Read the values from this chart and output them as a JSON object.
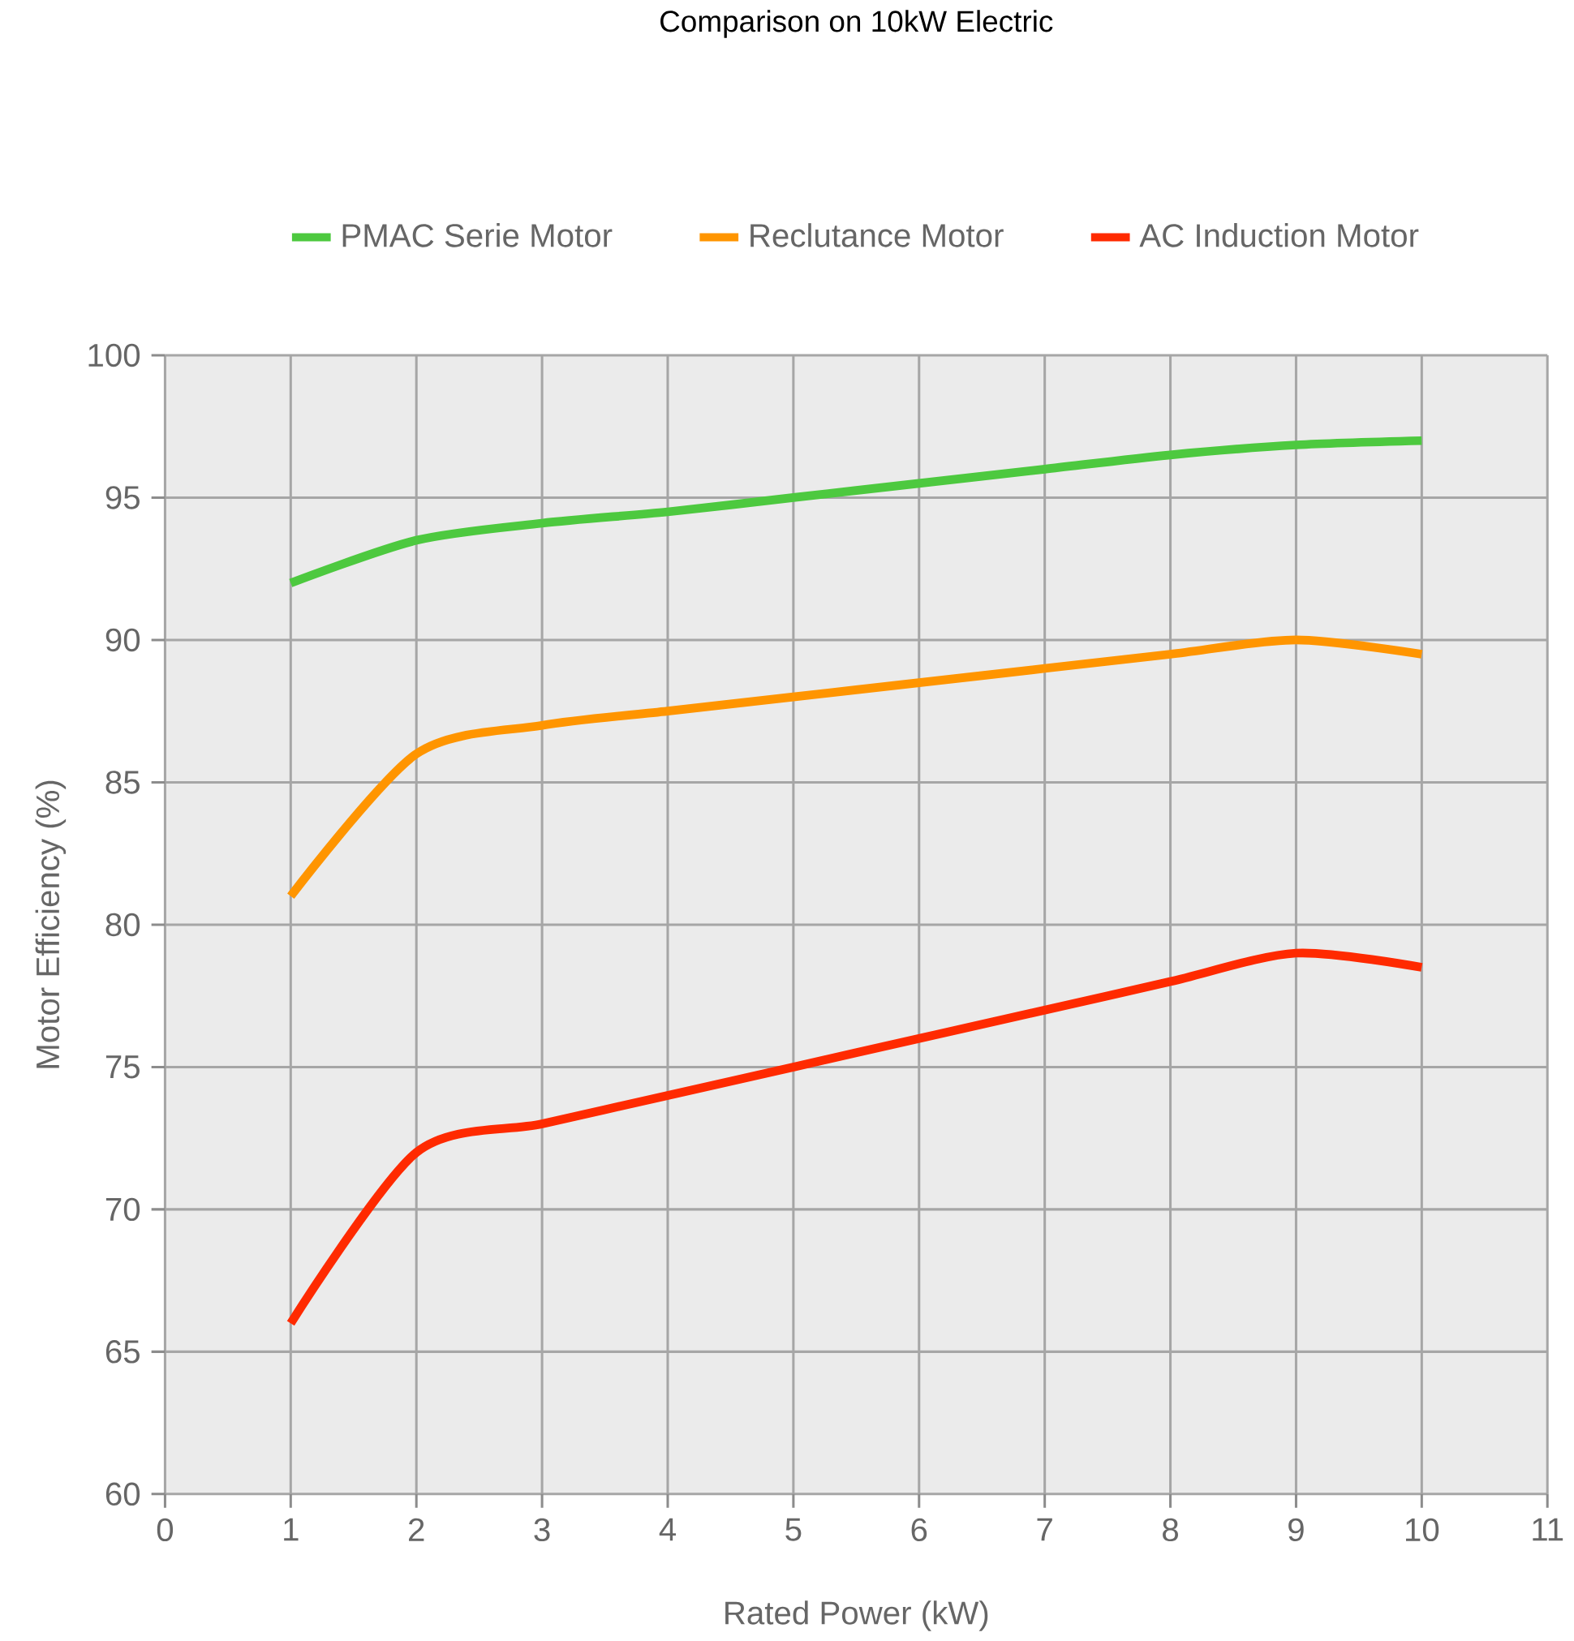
{
  "chart_data": {
    "type": "line",
    "title": "Comparison on 10kW Electric",
    "xlabel": "Rated Power (kW)",
    "ylabel": "Motor Efficiency (%)",
    "x": [
      1,
      2,
      3,
      4,
      5,
      6,
      7,
      8,
      9,
      10
    ],
    "series": [
      {
        "name": "PMAC Serie Motor",
        "color": "#4dc93f",
        "values": [
          92,
          93.5,
          94.1,
          94.5,
          95,
          95.5,
          96,
          96.5,
          96.85,
          97
        ]
      },
      {
        "name": "Reclutance Motor",
        "color": "#ff9500",
        "values": [
          81,
          86,
          87,
          87.5,
          88,
          88.5,
          89,
          89.5,
          90,
          89.5
        ]
      },
      {
        "name": "AC Induction Motor",
        "color": "#ff2a00",
        "values": [
          66,
          72,
          73,
          74,
          75,
          76,
          77,
          78,
          79,
          78.5
        ]
      }
    ],
    "xlim": [
      0,
      11
    ],
    "xticks": [
      0,
      1,
      2,
      3,
      4,
      5,
      6,
      7,
      8,
      9,
      10,
      11
    ],
    "ylim": [
      60,
      100
    ],
    "yticks": [
      60,
      65,
      70,
      75,
      80,
      85,
      90,
      95,
      100
    ],
    "grid": true,
    "legend": "top",
    "marker": "none",
    "line_style": "solid"
  }
}
